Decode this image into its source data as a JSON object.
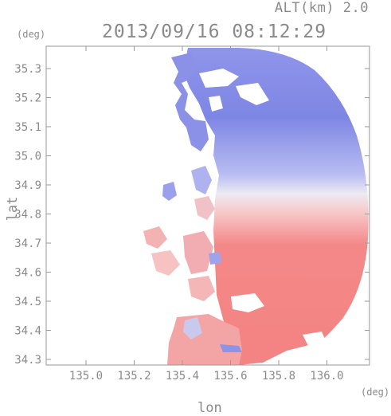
{
  "header": {
    "altitude": "ALT(km) 2.0",
    "timestamp": "2013/09/16 08:12:29"
  },
  "axes": {
    "lat_unit": "(deg)",
    "lon_unit": "(deg)",
    "ylabel": "lat",
    "xlabel": "lon",
    "lat_ticks": [
      "35.3",
      "35.2",
      "35.1",
      "35.0",
      "34.9",
      "34.8",
      "34.7",
      "34.6",
      "34.5",
      "34.4",
      "34.3"
    ],
    "lon_ticks": [
      "135.0",
      "135.2",
      "135.4",
      "135.6",
      "135.8",
      "136.0"
    ]
  },
  "colors": {
    "toward": "#7f86e6",
    "away": "#f47c7c",
    "frame": "#9a9a9a"
  }
}
